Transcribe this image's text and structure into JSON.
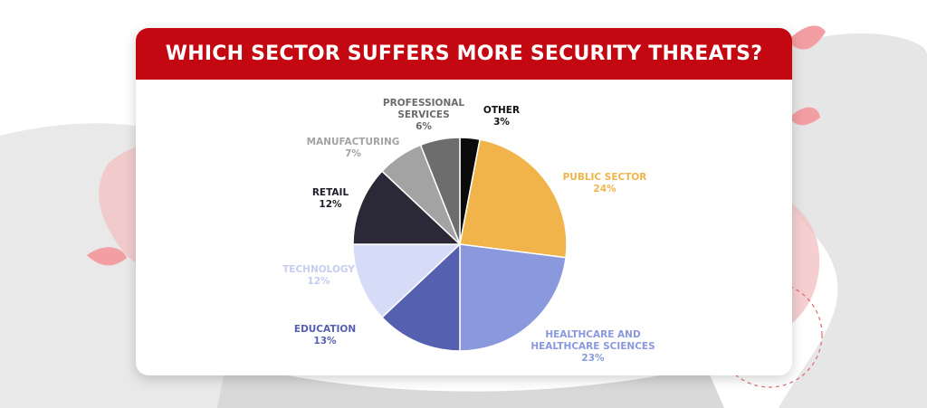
{
  "colors": {
    "banner": "#c40812",
    "background_blob": "#e6e6e6",
    "background_leaf": "#f4b4b6"
  },
  "chart_data": {
    "type": "pie",
    "title": "WHICH SECTOR SUFFERS MORE SECURITY THREATS?",
    "slices": [
      {
        "label": "OTHER",
        "value": 3,
        "display": "3%",
        "color": "#0b0b0b"
      },
      {
        "label": "PUBLIC SECTOR",
        "value": 24,
        "display": "24%",
        "color": "#f0b44a"
      },
      {
        "label": "HEALTHCARE AND\nHEALTHCARE SCIENCES",
        "value": 23,
        "display": "23%",
        "color": "#8a99dd"
      },
      {
        "label": "EDUCATION",
        "value": 13,
        "display": "13%",
        "color": "#5560b0"
      },
      {
        "label": "TECHNOLOGY",
        "value": 12,
        "display": "12%",
        "color": "#d6dcf8"
      },
      {
        "label": "RETAIL",
        "value": 12,
        "display": "12%",
        "color": "#2b2838"
      },
      {
        "label": "MANUFACTURING",
        "value": 7,
        "display": "7%",
        "color": "#a3a3a3"
      },
      {
        "label": "PROFESSIONAL\nSERVICES",
        "value": 6,
        "display": "6%",
        "color": "#6d6d6d"
      }
    ],
    "start_angle": "top",
    "direction": "clockwise",
    "labels": "outside"
  }
}
